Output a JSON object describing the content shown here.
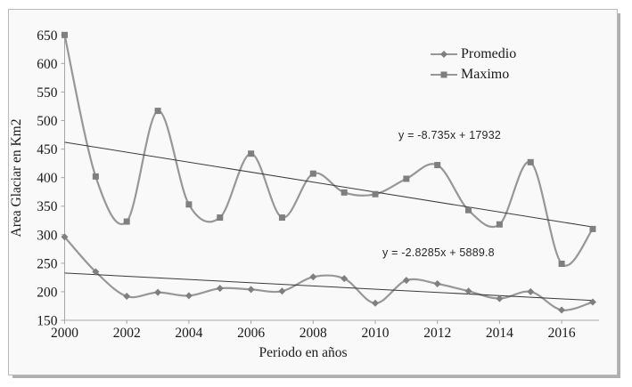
{
  "figure": {
    "background_color": "#f9f9f9",
    "frame_border_color": "#b9b9b9",
    "axis_color": "#a6a6a6",
    "text_color": "#1a1a1a",
    "series_line_color": "#979797",
    "marker_color": "#7f7f7f",
    "trendline_color": "#3a3a3a"
  },
  "chart_data": {
    "type": "line",
    "title": "",
    "xlabel": "Periodo en años",
    "ylabel": "Area Glaciar en Km2",
    "x": [
      2000,
      2001,
      2002,
      2003,
      2004,
      2005,
      2006,
      2007,
      2008,
      2009,
      2010,
      2011,
      2012,
      2013,
      2014,
      2015,
      2016,
      2017
    ],
    "x_tick_years": [
      2000,
      2002,
      2004,
      2006,
      2008,
      2010,
      2012,
      2014,
      2016
    ],
    "x_tick_labels": [
      "2000",
      "2002",
      "2004",
      "2006",
      "2008",
      "2010",
      "2012",
      "2014",
      "2016"
    ],
    "xlim": [
      2000,
      2017.2
    ],
    "ylim": [
      150,
      650
    ],
    "y_ticks": [
      150,
      200,
      250,
      300,
      350,
      400,
      450,
      500,
      550,
      600,
      650
    ],
    "grid": false,
    "smooth_lines": true,
    "legend_position": "inside-top-right",
    "series": [
      {
        "name": "Promedio",
        "marker": "diamond",
        "values": [
          296,
          235,
          192,
          199,
          193,
          206,
          204,
          201,
          226,
          223,
          180,
          220,
          214,
          201,
          188,
          200,
          168,
          182
        ],
        "trendline": {
          "label": "y = -2.8285x + 5889.8",
          "slope": -2.8285,
          "intercept": 5889.8,
          "x_start": 2000,
          "x_end": 2017
        }
      },
      {
        "name": "Maximo",
        "marker": "square",
        "values": [
          650,
          402,
          323,
          517,
          353,
          330,
          442,
          330,
          407,
          374,
          371,
          398,
          422,
          343,
          318,
          427,
          249,
          310
        ],
        "trendline": {
          "label": "y = -8.735x + 17932",
          "slope": -8.735,
          "intercept": 17932,
          "x_start": 2000,
          "x_end": 2017
        }
      }
    ]
  }
}
